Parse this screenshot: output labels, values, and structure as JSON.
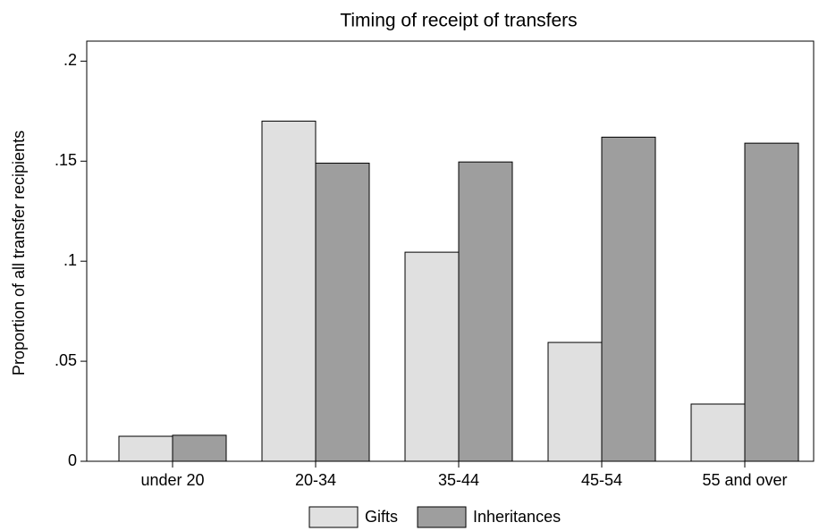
{
  "chart_data": {
    "type": "bar",
    "title": "Timing of receipt of transfers",
    "y_label": "Proportion of all transfer recipients",
    "categories": [
      "under 20",
      "20-34",
      "35-44",
      "45-54",
      "55 and over"
    ],
    "series": [
      {
        "name": "Gifts",
        "color": "#e0e0e0",
        "values": [
          0.0125,
          0.17,
          0.1045,
          0.0594,
          0.0286
        ]
      },
      {
        "name": "Inheritances",
        "color": "#9e9e9e",
        "values": [
          0.013,
          0.149,
          0.1496,
          0.162,
          0.159
        ]
      }
    ],
    "ylim": [
      0,
      0.21
    ],
    "yticks": [
      0,
      {
        "value": 0.05,
        "label": ".05"
      },
      {
        "value": 0.1,
        "label": ".1"
      },
      {
        "value": 0.15,
        "label": ".15"
      },
      {
        "value": 0.2,
        "label": ".2"
      }
    ],
    "legend": "bottom"
  }
}
